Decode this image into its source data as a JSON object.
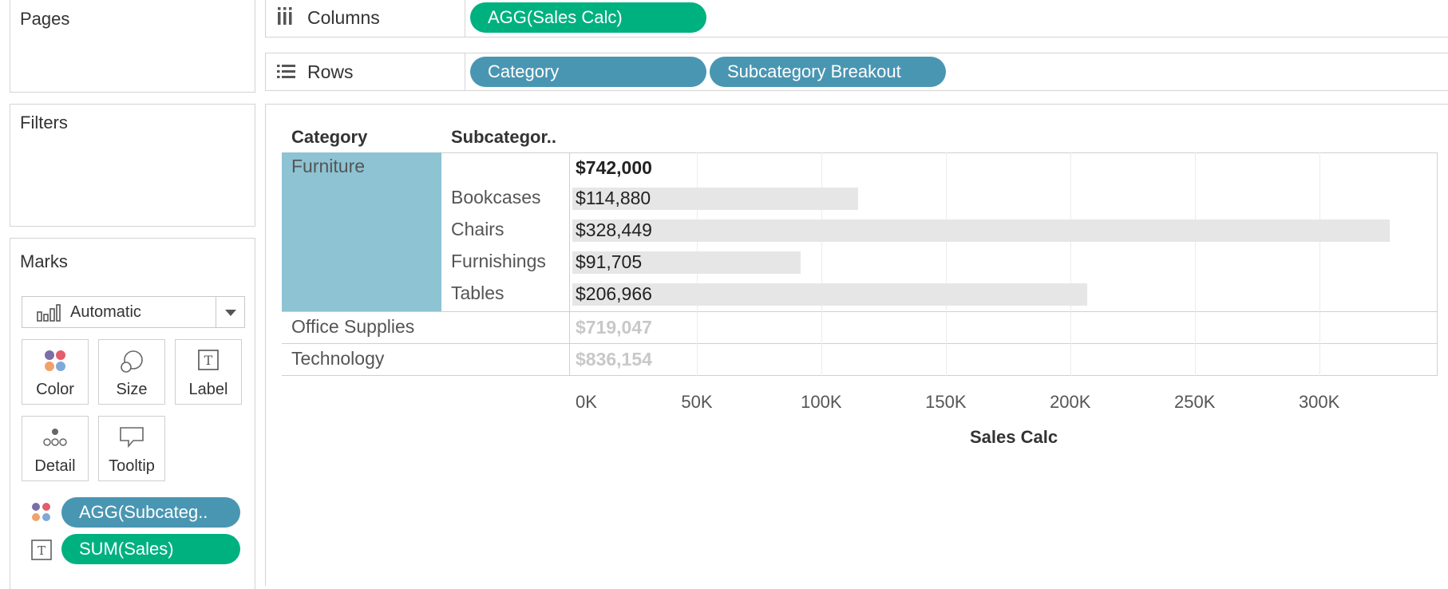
{
  "left": {
    "pages_title": "Pages",
    "filters_title": "Filters",
    "marks_title": "Marks",
    "mark_type": "Automatic",
    "mark_buttons": [
      {
        "label": "Color",
        "icon": "color-dots-icon"
      },
      {
        "label": "Size",
        "icon": "size-circles-icon"
      },
      {
        "label": "Label",
        "icon": "text-label-icon"
      },
      {
        "label": "Detail",
        "icon": "detail-dots-icon"
      },
      {
        "label": "Tooltip",
        "icon": "tooltip-bubble-icon"
      }
    ],
    "mark_pills": [
      {
        "label": "AGG(Subcateg..",
        "icon": "color-dots-icon",
        "color": "#4996b2"
      },
      {
        "label": "SUM(Sales)",
        "icon": "text-label-icon",
        "color": "#00b180"
      }
    ]
  },
  "shelves": {
    "columns_label": "Columns",
    "columns_pills": [
      "AGG(Sales Calc)"
    ],
    "rows_label": "Rows",
    "rows_pills": [
      "Category",
      "Subcategory Breakout"
    ]
  },
  "table": {
    "header_category": "Category",
    "header_subcategory": "Subcategor..",
    "categories": [
      {
        "name": "Furniture",
        "total": "$742,000",
        "highlighted": true
      },
      {
        "name": "Office Supplies",
        "total": "$719,047",
        "highlighted": false
      },
      {
        "name": "Technology",
        "total": "$836,154",
        "highlighted": false
      }
    ]
  },
  "chart_data": {
    "type": "bar",
    "categories": [
      "Bookcases",
      "Chairs",
      "Furnishings",
      "Tables"
    ],
    "values": [
      114880,
      328449,
      91705,
      206966
    ],
    "value_labels": [
      "$114,880",
      "$328,449",
      "$91,705",
      "$206,966"
    ],
    "xlabel": "Sales Calc",
    "xlim": [
      0,
      345000
    ],
    "ticks": [
      0,
      50000,
      100000,
      150000,
      200000,
      250000,
      300000
    ],
    "tick_labels": [
      "0K",
      "50K",
      "100K",
      "150K",
      "200K",
      "250K",
      "300K"
    ],
    "bar_color": "#e6e6e6",
    "grid": true
  },
  "colors": {
    "green_pill": "#00b180",
    "blue_pill": "#4996b2",
    "highlight": "#8dc3d3",
    "muted_text": "#c8c8c8"
  }
}
